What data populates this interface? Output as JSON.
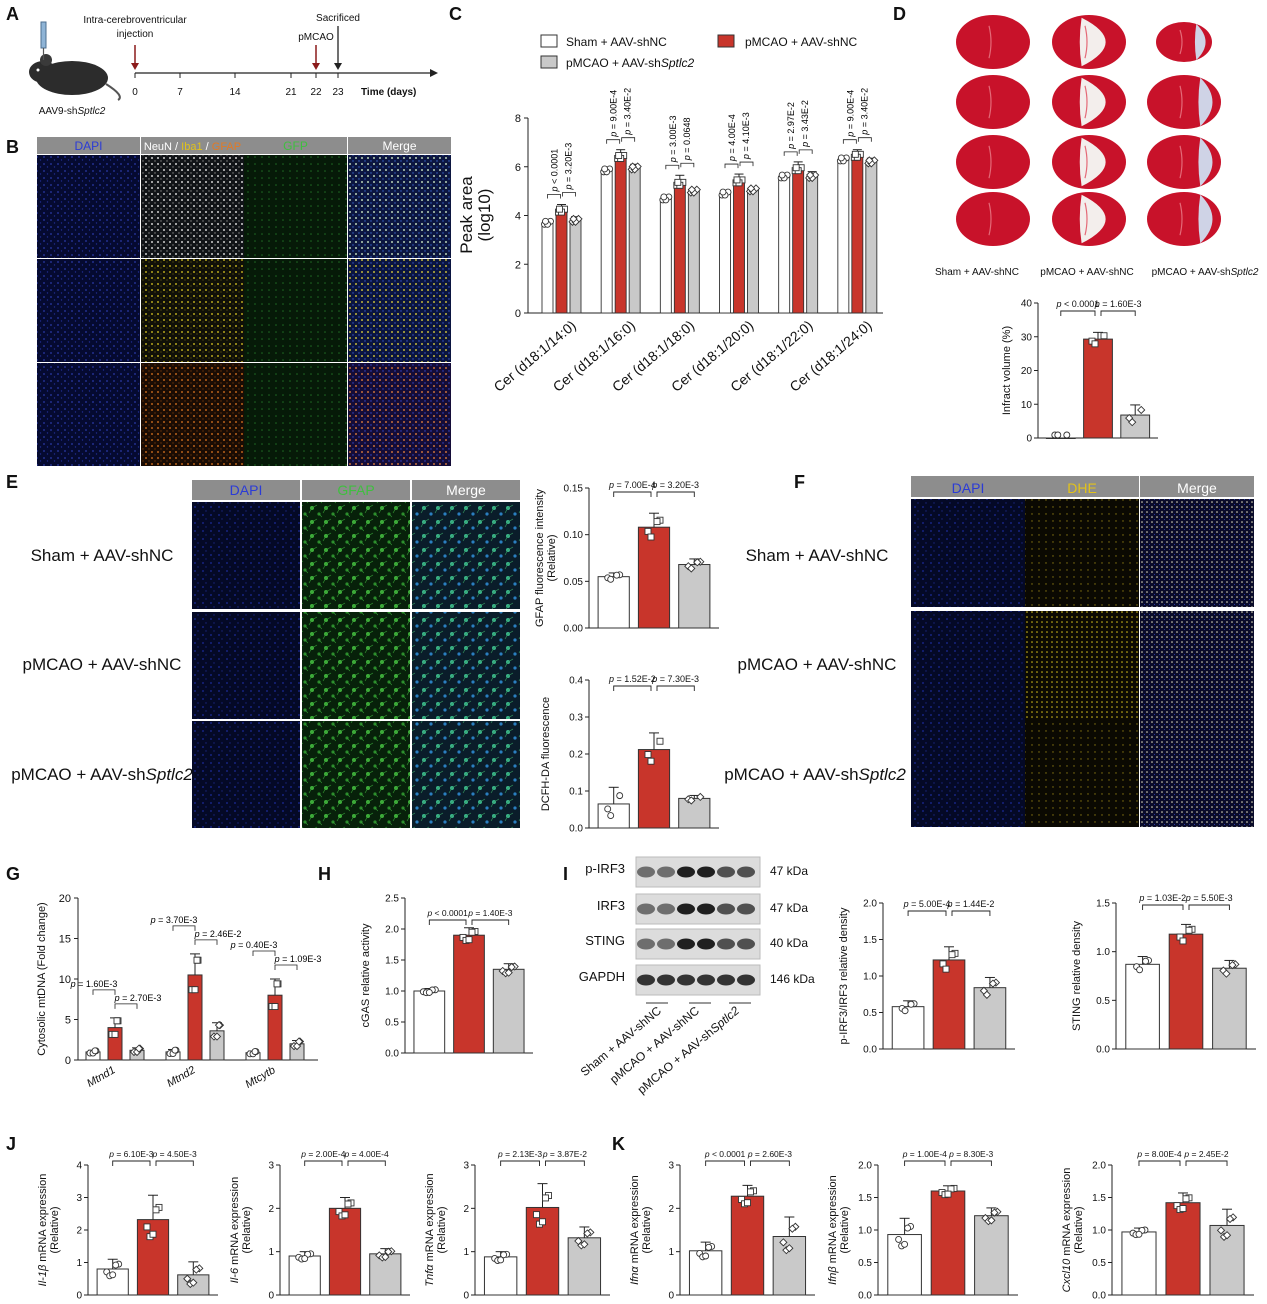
{
  "colors": {
    "sham": "#ffffff",
    "pmcao": "#c8352b",
    "shsptlc2": "#c9c9c9",
    "micro_gray": "#8a8a8a"
  },
  "groups": [
    "Sham + AAV-shNC",
    "pMCAO + AAV-shNC",
    "pMCAO + AAV-shSptlc2"
  ],
  "panelA": {
    "letter": "A",
    "drug_label": "AAV9-shSptlc2",
    "icv_label": [
      "Intra-cerebroventricular",
      "injection"
    ],
    "pmcao": "pMCAO",
    "sacrificed": "Sacrificed",
    "ticks": [
      "0",
      "7",
      "14",
      "21",
      "22",
      "23"
    ],
    "axis_label": "Time (days)"
  },
  "panelB": {
    "letter": "B",
    "headers": [
      "DAPI",
      "NeuN / Iba1 / GFAP",
      "GFP",
      "Merge"
    ],
    "header_colors": [
      "#2b3bd6",
      "#ffffff",
      "#3fbf3f",
      "#ffffff"
    ]
  },
  "panelC": {
    "letter": "C",
    "ylabel": [
      "Peak area",
      "(log10)"
    ],
    "yticks": [
      "0",
      "2",
      "4",
      "6",
      "8"
    ],
    "legend": [
      "Sham + AAV-shNC",
      "pMCAO + AAV-shNC",
      "pMCAO + AAV-shSptlc2"
    ]
  },
  "panelD": {
    "letter": "D",
    "group_labels": [
      "Sham + AAV-shNC",
      "pMCAO + AAV-shNC",
      "pMCAO + AAV-shSptlc2"
    ],
    "ylabel": "Infract volume (%)",
    "yticks": [
      "0",
      "10",
      "20",
      "30",
      "40"
    ],
    "p1": "p < 0.0001",
    "p2": "p = 1.60E-3"
  },
  "panelE": {
    "letter": "E",
    "headers": [
      "DAPI",
      "GFAP",
      "Merge"
    ],
    "rows": [
      "Sham + AAV-shNC",
      "pMCAO + AAV-shNC",
      "pMCAO + AAV-shSptlc2"
    ]
  },
  "panelF": {
    "letter": "F",
    "headers": [
      "DAPI",
      "DHE",
      "Merge"
    ],
    "rows": [
      "Sham + AAV-shNC",
      "pMCAO + AAV-shNC",
      "pMCAO + AAV-shSptlc2"
    ]
  },
  "panelG": {
    "letter": "G",
    "ylabel": "Cytosolic mtDNA (Fold change)"
  },
  "panelH": {
    "letter": "H"
  },
  "panelI": {
    "letter": "I",
    "bands": [
      "p-IRF3",
      "IRF3",
      "STING",
      "GAPDH"
    ],
    "kda": [
      "47 kDa",
      "47 kDa",
      "40 kDa",
      "146 kDa"
    ],
    "lanes": [
      "Sham + AAV-shNC",
      "pMCAO + AAV-shNC",
      "pMCAO + AAV-shSptlc2"
    ]
  },
  "panelJ": {
    "letter": "J"
  },
  "panelK": {
    "letter": "K"
  },
  "chart_data": [
    {
      "id": "C",
      "type": "bar",
      "ylabel": "Peak area (log10)",
      "ylim": [
        0,
        8
      ],
      "categories": [
        "Cer (d18:1/14:0)",
        "Cer (d18:1/16:0)",
        "Cer (d18:1/18:0)",
        "Cer (d18:1/20:0)",
        "Cer (d18:1/22:0)",
        "Cer (d18:1/24:0)"
      ],
      "series": [
        {
          "name": "Sham + AAV-shNC",
          "values": [
            3.7,
            5.85,
            4.7,
            4.9,
            5.6,
            6.3
          ]
        },
        {
          "name": "pMCAO + AAV-shNC",
          "values": [
            4.2,
            6.4,
            5.3,
            5.4,
            5.9,
            6.45
          ]
        },
        {
          "name": "pMCAO + AAV-shSptlc2",
          "values": [
            3.8,
            5.95,
            5.0,
            5.05,
            5.6,
            6.2
          ]
        }
      ],
      "errors": [
        [
          0.1,
          0.1,
          0.1,
          0.1,
          0.1,
          0.1
        ],
        [
          0.25,
          0.3,
          0.35,
          0.3,
          0.3,
          0.25
        ],
        [
          0.15,
          0.15,
          0.1,
          0.1,
          0.2,
          0.15
        ]
      ],
      "pvalues": [
        [
          "p < 0.0001",
          "p = 3.20E-3"
        ],
        [
          "p = 9.00E-4",
          "p = 3.40E-2"
        ],
        [
          "p = 3.00E-3",
          "p = 0.0648"
        ],
        [
          "p = 4.00E-4",
          "p = 4.10E-3"
        ],
        [
          "p = 2.97E-2",
          "p = 3.43E-2"
        ],
        [
          "p = 9.00E-4",
          "p = 3.40E-2"
        ]
      ]
    },
    {
      "id": "D",
      "type": "bar",
      "ylabel": "Infract volume (%)",
      "ylim": [
        0,
        40
      ],
      "categories": [
        "Sham + AAV-shNC",
        "pMCAO + AAV-shNC",
        "pMCAO + AAV-shSptlc2"
      ],
      "values": [
        0,
        29.3,
        6.8
      ],
      "errors": [
        0,
        2,
        3
      ],
      "pvalues": [
        "p < 0.0001",
        "p = 1.60E-3"
      ]
    },
    {
      "id": "E1",
      "type": "bar",
      "ylabel": "GFAP fluorescence intensity (Relative)",
      "ylim": [
        0,
        0.15
      ],
      "yticks": [
        "0.00",
        "0.05",
        "0.10",
        "0.15"
      ],
      "values": [
        0.055,
        0.108,
        0.068
      ],
      "errors": [
        0.004,
        0.015,
        0.006
      ],
      "pvalues": [
        "p = 7.00E-4",
        "p = 3.20E-3"
      ]
    },
    {
      "id": "E2",
      "type": "bar",
      "ylabel": "DCFH-DA fluorescence",
      "ylim": [
        0,
        0.4
      ],
      "yticks": [
        "0.0",
        "0.1",
        "0.2",
        "0.3",
        "0.4"
      ],
      "values": [
        0.065,
        0.212,
        0.08
      ],
      "errors": [
        0.045,
        0.045,
        0.008
      ],
      "pvalues": [
        "p = 1.52E-2",
        "p = 7.30E-3"
      ]
    },
    {
      "id": "G",
      "type": "bar",
      "ylabel": "Cytosolic mtDNA (Fold change)",
      "ylim": [
        0,
        20
      ],
      "yticks": [
        "0",
        "5",
        "10",
        "15",
        "20"
      ],
      "categories": [
        "Mtnd1",
        "Mtnd2",
        "Mtcytb"
      ],
      "series": [
        {
          "name": "Sham + AAV-shNC",
          "values": [
            1.0,
            1.0,
            0.9
          ]
        },
        {
          "name": "pMCAO + AAV-shNC",
          "values": [
            4.0,
            10.5,
            8.0
          ]
        },
        {
          "name": "pMCAO + AAV-shSptlc2",
          "values": [
            1.2,
            3.6,
            2.0
          ]
        }
      ],
      "errors": [
        [
          0.2,
          0.3,
          0.2
        ],
        [
          1.2,
          2.6,
          2.0
        ],
        [
          0.3,
          1.0,
          0.4
        ]
      ],
      "pvalues": [
        [
          "p = 1.60E-3",
          "p = 2.70E-3"
        ],
        [
          "p = 3.70E-3",
          "p = 2.46E-2"
        ],
        [
          "p = 0.40E-3",
          "p = 1.09E-3"
        ]
      ]
    },
    {
      "id": "H",
      "type": "bar",
      "ylabel": "cGAS relative activity",
      "ylim": [
        0,
        2.5
      ],
      "yticks": [
        "0.0",
        "0.5",
        "1.0",
        "1.5",
        "2.0",
        "2.5"
      ],
      "values": [
        1.0,
        1.9,
        1.35
      ],
      "errors": [
        0.04,
        0.12,
        0.09
      ],
      "pvalues": [
        "p < 0.0001",
        "p = 1.40E-3"
      ]
    },
    {
      "id": "I1",
      "type": "bar",
      "ylabel": "p-IRF3/IRF3 relative density",
      "ylim": [
        0,
        2.0
      ],
      "yticks": [
        "0.0",
        "0.5",
        "1.0",
        "1.5",
        "2.0"
      ],
      "values": [
        0.58,
        1.22,
        0.84
      ],
      "errors": [
        0.08,
        0.18,
        0.14
      ],
      "pvalues": [
        "p = 5.00E-4",
        "p = 1.44E-2"
      ]
    },
    {
      "id": "I2",
      "type": "bar",
      "ylabel": "STING relative density",
      "ylim": [
        0,
        1.5
      ],
      "yticks": [
        "0.0",
        "0.5",
        "1.0",
        "1.5"
      ],
      "values": [
        0.87,
        1.18,
        0.83
      ],
      "errors": [
        0.08,
        0.1,
        0.08
      ],
      "pvalues": [
        "p = 1.03E-2",
        "p = 5.50E-3"
      ]
    },
    {
      "id": "J1",
      "type": "bar",
      "ylabel": "Il-1β mRNA expression (Relative)",
      "ylim": [
        0,
        4
      ],
      "yticks": [
        "0",
        "1",
        "2",
        "3",
        "4"
      ],
      "values": [
        0.8,
        2.32,
        0.62
      ],
      "errors": [
        0.3,
        0.75,
        0.4
      ],
      "pvalues": [
        "p = 6.10E-3",
        "p = 4.50E-3"
      ]
    },
    {
      "id": "J2",
      "type": "bar",
      "ylabel": "Il-6 mRNA expression (Relative)",
      "ylim": [
        0,
        3
      ],
      "yticks": [
        "0",
        "1",
        "2",
        "3"
      ],
      "values": [
        0.9,
        2.0,
        0.95
      ],
      "errors": [
        0.1,
        0.25,
        0.12
      ],
      "pvalues": [
        "p = 2.00E-4",
        "p = 4.00E-4"
      ]
    },
    {
      "id": "J3",
      "type": "bar",
      "ylabel": "Tnfα mRNA expression (Relative)",
      "ylim": [
        0,
        3
      ],
      "yticks": [
        "0",
        "1",
        "2",
        "3"
      ],
      "values": [
        0.88,
        2.02,
        1.32
      ],
      "errors": [
        0.12,
        0.55,
        0.25
      ],
      "pvalues": [
        "p = 2.13E-3",
        "p = 3.87E-2"
      ]
    },
    {
      "id": "K1",
      "type": "bar",
      "ylabel": "Ifnα mRNA expression (Relative)",
      "ylim": [
        0,
        3
      ],
      "yticks": [
        "0",
        "1",
        "2",
        "3"
      ],
      "values": [
        1.02,
        2.28,
        1.35
      ],
      "errors": [
        0.2,
        0.25,
        0.45
      ],
      "pvalues": [
        "p < 0.0001",
        "p = 2.60E-3"
      ]
    },
    {
      "id": "K2",
      "type": "bar",
      "ylabel": "Ifnβ mRNA expression (Relative)",
      "ylim": [
        0,
        2.0
      ],
      "yticks": [
        "0.0",
        "0.5",
        "1.0",
        "1.5",
        "2.0"
      ],
      "values": [
        0.93,
        1.6,
        1.22
      ],
      "errors": [
        0.25,
        0.08,
        0.12
      ],
      "pvalues": [
        "p = 1.00E-4",
        "p = 8.30E-3"
      ]
    },
    {
      "id": "K3",
      "type": "bar",
      "ylabel": "Cxcl10 mRNA expression (Relative)",
      "ylim": [
        0,
        2.0
      ],
      "yticks": [
        "0.0",
        "0.5",
        "1.0",
        "1.5",
        "2.0"
      ],
      "values": [
        0.97,
        1.42,
        1.07
      ],
      "errors": [
        0.06,
        0.15,
        0.25
      ],
      "pvalues": [
        "p = 8.00E-4",
        "p = 2.45E-2"
      ]
    }
  ]
}
